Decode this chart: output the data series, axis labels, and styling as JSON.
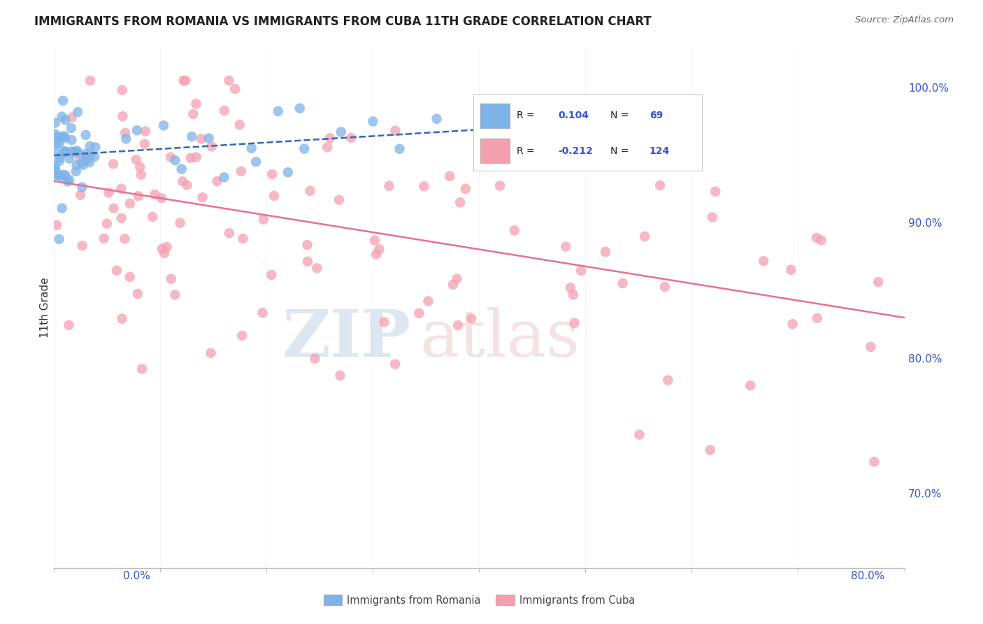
{
  "title": "IMMIGRANTS FROM ROMANIA VS IMMIGRANTS FROM CUBA 11TH GRADE CORRELATION CHART",
  "source": "Source: ZipAtlas.com",
  "ylabel": "11th Grade",
  "right_yticks": [
    "100.0%",
    "90.0%",
    "80.0%",
    "70.0%"
  ],
  "right_ytick_vals": [
    1.0,
    0.9,
    0.8,
    0.7
  ],
  "xmin": 0.0,
  "xmax": 0.8,
  "ymin": 0.645,
  "ymax": 1.03,
  "blue_color": "#7EB3E8",
  "pink_color": "#F4A0B0",
  "blue_line_color": "#3366BB",
  "pink_line_color": "#E87090",
  "text_blue": "#3355CC",
  "grid_color": "#DDDDEE",
  "watermark_zip_color": "#C8D8E8",
  "watermark_atlas_color": "#E8C8CC"
}
